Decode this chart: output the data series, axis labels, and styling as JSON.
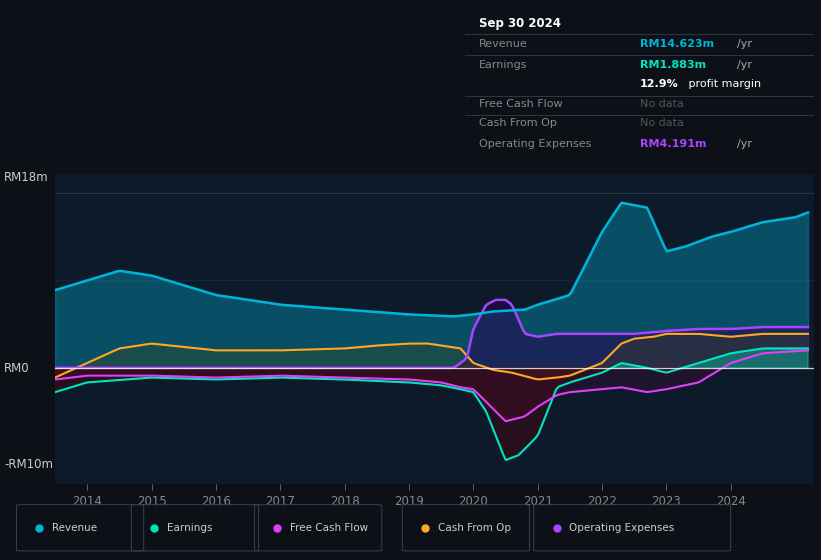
{
  "bg_color": "#0d1117",
  "chart_bg": "#0d1a2a",
  "y_label_top": "RM18m",
  "y_label_zero": "RM0",
  "y_label_bottom": "-RM10m",
  "x_ticks": [
    2014,
    2015,
    2016,
    2017,
    2018,
    2019,
    2020,
    2021,
    2022,
    2023,
    2024
  ],
  "ylim": [
    -12,
    20
  ],
  "colors": {
    "revenue": "#00b4d8",
    "earnings": "#00e5c0",
    "free_cash_flow": "#e040fb",
    "cash_from_op": "#ffa726",
    "operating_expenses": "#aa44ff"
  },
  "info_box": {
    "date": "Sep 30 2024",
    "revenue_label": "Revenue",
    "revenue_value": "RM14.623m",
    "revenue_suffix": " /yr",
    "earnings_label": "Earnings",
    "earnings_value": "RM1.883m",
    "earnings_suffix": " /yr",
    "profit_margin": "12.9%",
    "profit_margin_suffix": " profit margin",
    "fcf_label": "Free Cash Flow",
    "fcf_value": "No data",
    "cfop_label": "Cash From Op",
    "cfop_value": "No data",
    "opex_label": "Operating Expenses",
    "opex_value": "RM4.191m",
    "opex_suffix": " /yr"
  },
  "legend": [
    {
      "label": "Revenue",
      "color": "#00b4d8"
    },
    {
      "label": "Earnings",
      "color": "#00e5c0"
    },
    {
      "label": "Free Cash Flow",
      "color": "#e040fb"
    },
    {
      "label": "Cash From Op",
      "color": "#ffa726"
    },
    {
      "label": "Operating Expenses",
      "color": "#aa44ff"
    }
  ]
}
